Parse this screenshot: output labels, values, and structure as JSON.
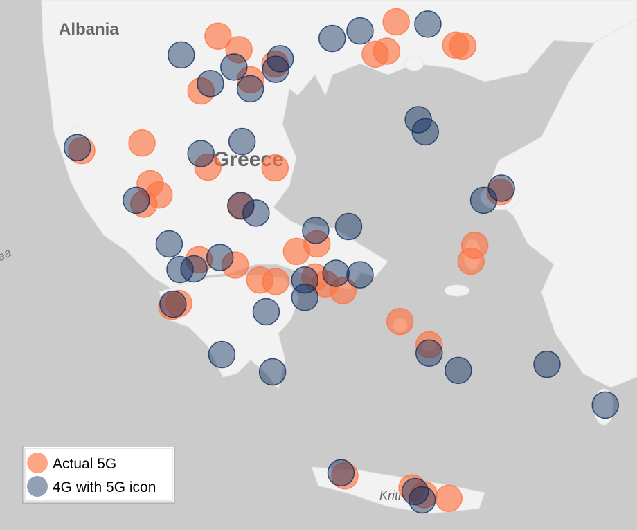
{
  "chart_data": {
    "type": "map",
    "labels": [
      "Albania",
      "Greece",
      "Kriti",
      "ea"
    ],
    "xlim": [
      18.64,
      28.69
    ],
    "ylim": [
      34.54,
      41.58
    ],
    "legend": "lower left",
    "series": [
      {
        "name": "Actual 5G",
        "color": "#fd7444",
        "lon": [
          22.08,
          22.41,
          21.81,
          22.59,
          22.98,
          24.89,
          24.56,
          24.74,
          25.83,
          25.94,
          20.88,
          19.93,
          21.01,
          21.15,
          20.91,
          21.92,
          22.98,
          22.44,
          23.32,
          23.64,
          22.35,
          21.78,
          22.74,
          22.99,
          23.61,
          23.77,
          24.05,
          21.46,
          21.35,
          24.95,
          25.41,
          26.13,
          26.07,
          26.53,
          24.08,
          25.14,
          25.33,
          25.72
        ],
        "lat": [
          41.1,
          40.92,
          40.37,
          40.52,
          40.73,
          41.29,
          40.86,
          40.9,
          40.98,
          40.97,
          39.68,
          39.58,
          39.14,
          38.99,
          38.87,
          39.36,
          39.35,
          38.84,
          38.24,
          38.34,
          38.06,
          38.13,
          37.86,
          37.84,
          37.9,
          37.81,
          37.72,
          37.55,
          37.51,
          37.31,
          37.0,
          38.32,
          38.11,
          39.03,
          35.26,
          35.1,
          35.01,
          34.96
        ]
      },
      {
        "name": "4G with 5G icon",
        "color": "#0d2d5e",
        "lon": [
          23.88,
          24.32,
          25.39,
          21.5,
          22.33,
          21.96,
          22.59,
          23.06,
          22.99,
          25.24,
          25.35,
          22.46,
          19.86,
          21.81,
          20.79,
          22.44,
          22.68,
          23.62,
          24.14,
          21.31,
          22.11,
          21.48,
          21.7,
          23.45,
          23.45,
          23.94,
          24.32,
          22.84,
          21.37,
          22.14,
          22.94,
          25.41,
          25.87,
          27.27,
          28.19,
          26.27,
          26.55,
          24.02,
          25.19,
          25.3
        ],
        "lat": [
          41.07,
          41.17,
          41.26,
          40.85,
          40.69,
          40.47,
          40.4,
          40.8,
          40.66,
          39.99,
          39.83,
          39.7,
          39.62,
          39.54,
          38.92,
          38.85,
          38.75,
          38.52,
          38.57,
          38.34,
          38.16,
          38.0,
          38.01,
          37.86,
          37.63,
          37.95,
          37.93,
          37.44,
          37.54,
          36.87,
          36.64,
          36.89,
          36.66,
          36.74,
          36.2,
          38.92,
          39.08,
          35.3,
          35.05,
          34.94
        ]
      }
    ]
  }
}
